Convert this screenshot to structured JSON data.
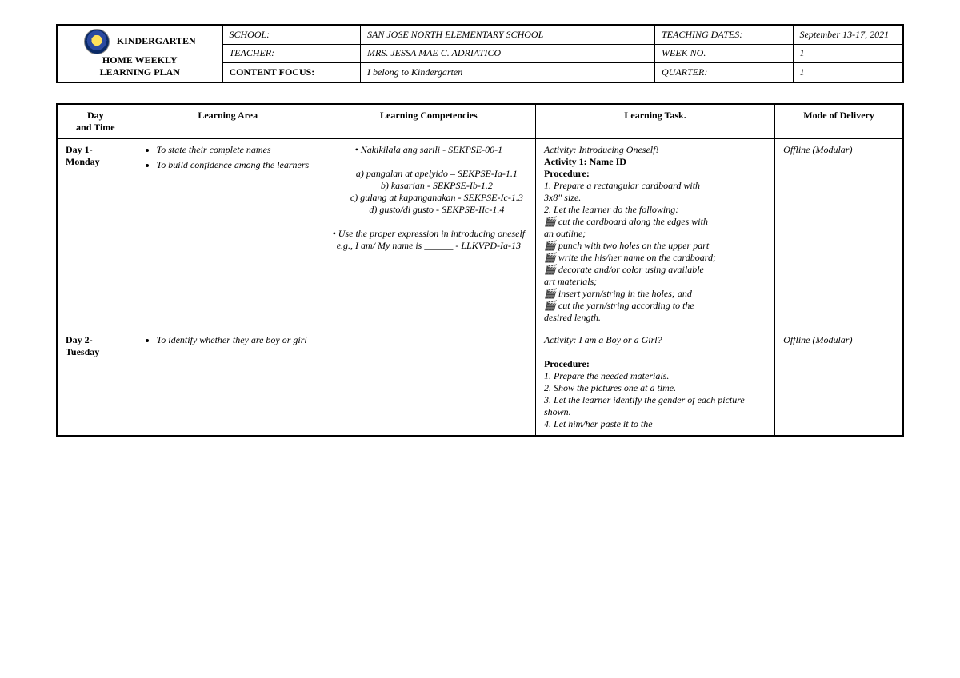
{
  "header": {
    "title_line1": "KINDERGARTEN",
    "title_line2": "HOME WEEKLY",
    "title_line3": "LEARNING PLAN",
    "rows": [
      {
        "label": "SCHOOL:",
        "val1": "SAN JOSE NORTH ELEMENTARY SCHOOL",
        "label2": "TEACHING DATES:",
        "val2": "September 13-17, 2021"
      },
      {
        "label": "TEACHER:",
        "val1": "MRS. JESSA MAE C. ADRIATICO",
        "label2": "WEEK NO.",
        "val2": "1"
      },
      {
        "label": "CONTENT FOCUS:",
        "label_bold": true,
        "val1": "I belong to Kindergarten",
        "label2": "QUARTER:",
        "val2": "1"
      }
    ]
  },
  "columns": {
    "day": "Day\nand Time",
    "area": "Learning Area",
    "comp": "Learning Competencies",
    "task": "Learning Task.",
    "mode": "Mode of Delivery"
  },
  "rows": [
    {
      "day": "Day 1- Monday",
      "area": [
        "To state their complete names",
        "To build confidence among the learners"
      ],
      "comp": {
        "main": "• Nakikilala ang sarili - SEKPSE-00-1",
        "subs": [
          "a)  pangalan at apelyido – SEKPSE-Ia-1.1",
          "b) kasarian - SEKPSE-Ib-1.2",
          "c) gulang at kapanganakan - SEKPSE-Ic-1.3",
          "d)  gusto/di gusto - SEKPSE-IIc-1.4"
        ],
        "extra": "• Use the proper expression in introducing oneself e.g., I am/ My name is ______ - LLKVPD-Ia-13"
      },
      "task": {
        "title": "Activity: Introducing Oneself!",
        "act_header": "Activity 1: Name ID",
        "proc_header": "Procedure:",
        "lines": [
          "1. Prepare a rectangular cardboard with",
          "3x8\" size.",
          "2. Let the learner do the following:",
          "🎬 cut the cardboard along the edges with",
          "an outline;",
          "🎬 punch with two holes on the upper part",
          "🎬 write the his/her name on the cardboard;",
          "🎬 decorate and/or color using available",
          "art materials;",
          "🎬 insert yarn/string in the holes; and",
          "🎬 cut the yarn/string according to the",
          "desired length."
        ]
      },
      "mode": "Offline (Modular)"
    },
    {
      "day": "Day 2- Tuesday",
      "area": [
        "To identify whether they are boy or girl"
      ],
      "comp": null,
      "task": {
        "title": "Activity: I am a Boy or a Girl?",
        "proc_header": "Procedure:",
        "lines": [
          "1. Prepare the needed materials.",
          "2. Show the pictures one at a time.",
          "3. Let the learner identify the gender of each picture shown.",
          "4. Let him/her paste it to the"
        ]
      },
      "mode": "Offline (Modular)"
    }
  ]
}
